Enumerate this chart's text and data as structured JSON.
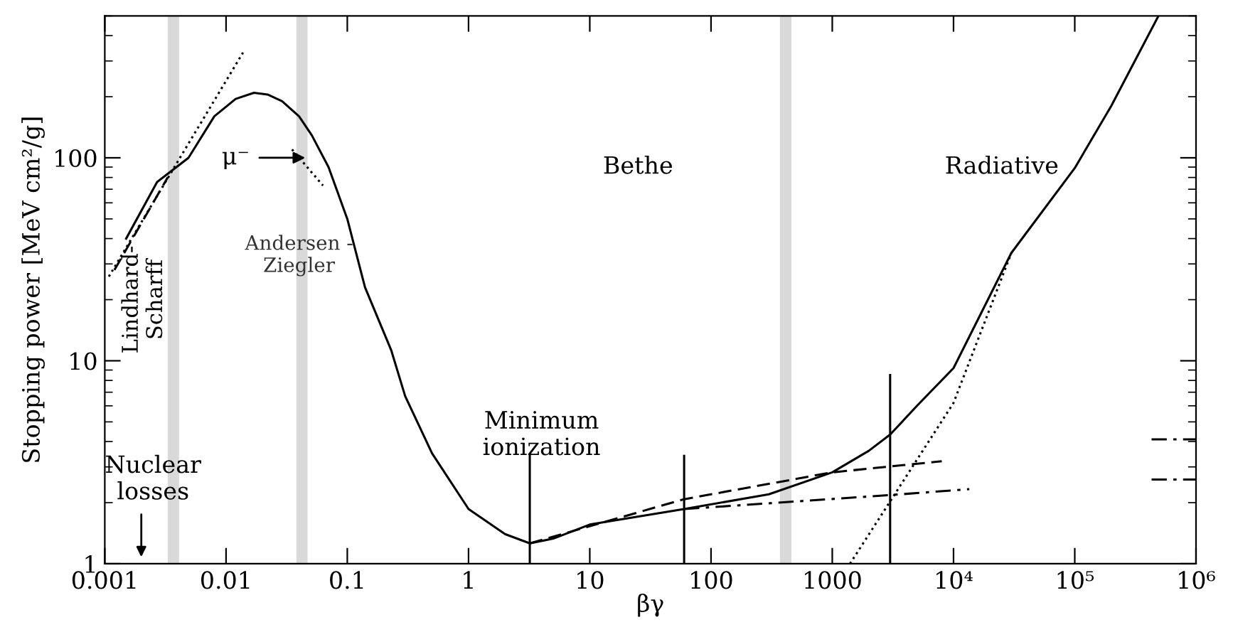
{
  "chart_data": {
    "type": "line",
    "xlabel": "βγ",
    "ylabel": "Stopping power [MeV cm²/g]",
    "log": "xy",
    "xlim": [
      0.001,
      1000000
    ],
    "ylim": [
      1,
      500
    ],
    "xticks": [
      0.001,
      0.01,
      0.1,
      1,
      10,
      100,
      1000,
      {
        "value": 10000,
        "label": "10⁴"
      },
      {
        "value": 100000,
        "label": "10⁵"
      },
      {
        "value": 1000000,
        "label": "10⁶"
      }
    ],
    "yticks": [
      1,
      10,
      100
    ],
    "series": [
      {
        "color": "#000000",
        "line_style": "solid",
        "x": [
          0.0015,
          0.0027,
          0.0049,
          0.008,
          0.012,
          0.017,
          0.022,
          0.029,
          0.04,
          0.051,
          0.07,
          0.1,
          0.14,
          0.23,
          0.3,
          0.5,
          1,
          2,
          3.2,
          5,
          10,
          60,
          300,
          1000,
          2000,
          3000,
          5000,
          10000,
          30000,
          100000,
          200000,
          490000
        ],
        "values": [
          40,
          76,
          100,
          160,
          195,
          209,
          205,
          190,
          160,
          129,
          90,
          50,
          23,
          11.3,
          6.7,
          3.5,
          1.86,
          1.4,
          1.26,
          1.33,
          1.56,
          1.86,
          2.2,
          2.82,
          3.6,
          4.33,
          6,
          9.2,
          34,
          89,
          180,
          500
        ]
      },
      {
        "color": "#000000",
        "line_style": "dashed",
        "x": [
          3.2,
          60,
          1000,
          8000
        ],
        "values": [
          1.26,
          2.08,
          2.82,
          3.2
        ]
      },
      {
        "color": "#000000",
        "line_style": "dashdot",
        "x": [
          60,
          3000,
          13500
        ],
        "values": [
          1.86,
          2.18,
          2.33
        ]
      },
      {
        "color": "#000000",
        "line_style": "dotted",
        "x": [
          1400,
          10000,
          30000
        ],
        "values": [
          1,
          6.2,
          34
        ]
      },
      {
        "color": "#000000",
        "line_style": "dotted",
        "x": [
          0.00108,
          0.0138
        ],
        "values": [
          26,
          330
        ]
      },
      {
        "color": "#000000",
        "line_style": "dotted",
        "x": [
          0.035,
          0.063
        ],
        "values": [
          110,
          73
        ]
      },
      {
        "color": "#000000",
        "line_style": "dashed",
        "x": [
          0.0012,
          0.0033
        ],
        "values": [
          28,
          80
        ]
      },
      {
        "color": "#000000",
        "line_style": "dashdot",
        "x": [
          430000,
          1000000
        ],
        "values": [
          4.1,
          4.1
        ]
      },
      {
        "color": "#000000",
        "line_style": "dashdot",
        "x": [
          430000,
          1000000
        ],
        "values": [
          2.6,
          2.6
        ]
      },
      {
        "color": "#000000",
        "line_style": "solid",
        "x": [
          3.2,
          3.2
        ],
        "values": [
          1,
          3.4
        ]
      },
      {
        "color": "#000000",
        "line_style": "solid",
        "x": [
          60,
          60
        ],
        "values": [
          1,
          3.4
        ]
      },
      {
        "color": "#000000",
        "line_style": "solid",
        "x": [
          3000,
          3000
        ],
        "values": [
          1,
          8.5
        ]
      }
    ],
    "bands": [
      {
        "axis": "x",
        "from": 0.0033,
        "to": 0.0041,
        "color": "#d9d9d9"
      },
      {
        "axis": "x",
        "from": 0.038,
        "to": 0.047,
        "color": "#d9d9d9"
      },
      {
        "axis": "x",
        "from": 370,
        "to": 460,
        "color": "#d9d9d9"
      }
    ],
    "annotations": [
      {
        "text": "μ⁻",
        "x": 0.045,
        "y": 100
      },
      "Nuclear\nlosses",
      "Andersen -\nZiegler",
      "Lindhard-\nScharff",
      "Bethe",
      "Radiative",
      "Minimum\nionization"
    ]
  }
}
